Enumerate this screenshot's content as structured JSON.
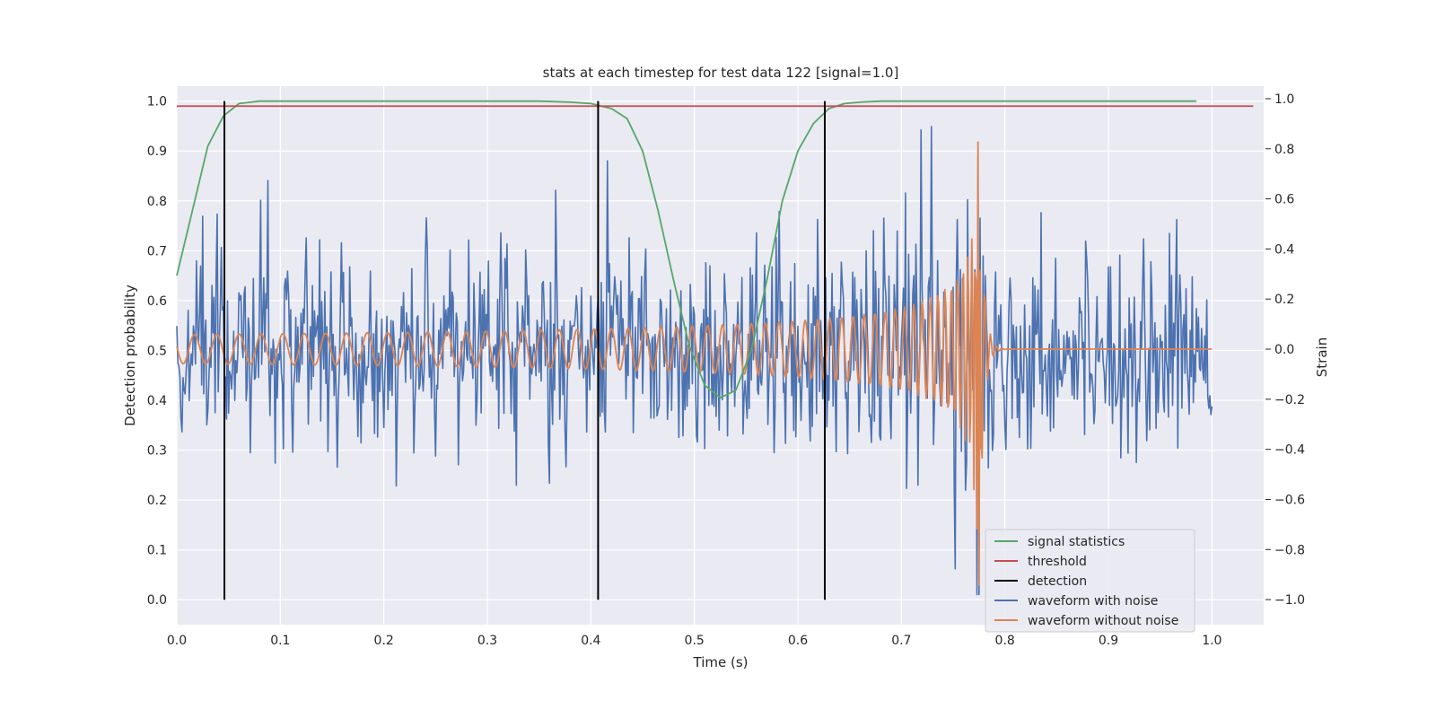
{
  "chart_data": {
    "type": "line",
    "title": "stats at each timestep for test data 122 [signal=1.0]",
    "xlabel": "Time (s)",
    "ylabel": "Detection probability",
    "ylabel_right": "Strain",
    "xlim": [
      0.0,
      1.05
    ],
    "ylim": [
      -0.05,
      1.03
    ],
    "ylim_right": [
      -1.1,
      1.05
    ],
    "x_ticks": [
      "0.0",
      "0.1",
      "0.2",
      "0.3",
      "0.4",
      "0.5",
      "0.6",
      "0.7",
      "0.8",
      "0.9",
      "1.0"
    ],
    "y_ticks": [
      "0.0",
      "0.1",
      "0.2",
      "0.3",
      "0.4",
      "0.5",
      "0.6",
      "0.7",
      "0.8",
      "0.9",
      "1.0"
    ],
    "y_ticks_right": [
      "−1.0",
      "−0.8",
      "−0.6",
      "−0.4",
      "−0.2",
      "0.0",
      "0.2",
      "0.4",
      "0.6",
      "0.8",
      "1.0"
    ],
    "grid": true,
    "legend_position": "lower-right",
    "colors": {
      "signal_statistics": "#55a868",
      "threshold": "#c44e52",
      "detection": "#000000",
      "waveform_with_noise": "#4c72b0",
      "waveform_without_noise": "#dd8452",
      "background": "#eaeaf2"
    },
    "series": [
      {
        "name": "signal statistics",
        "axis": "left",
        "x": [
          0.0,
          0.015,
          0.03,
          0.045,
          0.06,
          0.08,
          0.1,
          0.2,
          0.3,
          0.35,
          0.38,
          0.4,
          0.42,
          0.435,
          0.45,
          0.465,
          0.48,
          0.495,
          0.51,
          0.525,
          0.54,
          0.555,
          0.57,
          0.585,
          0.6,
          0.615,
          0.63,
          0.645,
          0.66,
          0.68,
          0.7,
          0.75,
          0.8,
          0.9,
          0.985
        ],
        "y": [
          0.65,
          0.78,
          0.91,
          0.97,
          0.995,
          1.0,
          1.0,
          1.0,
          1.0,
          1.0,
          0.998,
          0.995,
          0.985,
          0.965,
          0.9,
          0.78,
          0.64,
          0.51,
          0.43,
          0.405,
          0.42,
          0.5,
          0.64,
          0.8,
          0.9,
          0.955,
          0.985,
          0.995,
          0.998,
          1.0,
          1.0,
          1.0,
          1.0,
          1.0,
          1.0
        ]
      },
      {
        "name": "threshold",
        "axis": "left",
        "x": [
          0.0,
          1.04
        ],
        "y": [
          0.99,
          0.99
        ]
      },
      {
        "name": "detection",
        "axis": "left",
        "x_positions": [
          0.046,
          0.407,
          0.626
        ],
        "y_range": [
          0.0,
          1.0
        ]
      },
      {
        "name": "waveform with noise",
        "axis": "right",
        "x_range": [
          0.0,
          1.0
        ],
        "description": "noisy strain, mean 0, amplitude about ±0.35, peaks near ±0.95 around 0.77 s"
      },
      {
        "name": "waveform without noise",
        "axis": "right",
        "x_range": [
          0.0,
          1.0
        ],
        "description": "chirp, amplitude 0.05 rising to about 0.95 at merger 0.775 s, then ringdown to 0"
      }
    ],
    "legend": [
      "signal statistics",
      "threshold",
      "detection",
      "waveform with noise",
      "waveform without noise"
    ]
  }
}
